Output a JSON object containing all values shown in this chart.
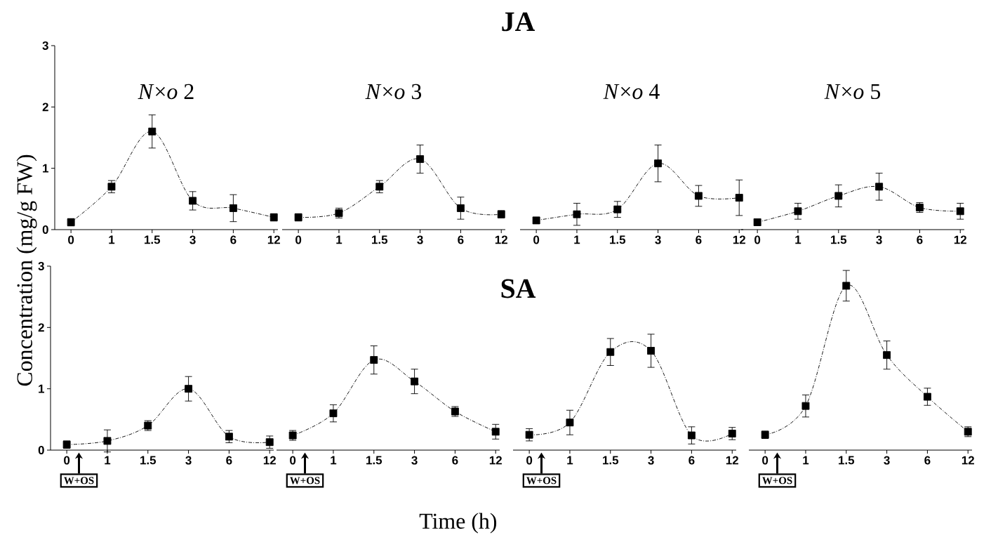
{
  "chart_data": [
    {
      "type": "line",
      "title": "*N*×*o* 2",
      "ylabel": "Concentration (mg/g FW)",
      "annotations": [
        "JA"
      ],
      "categories": [
        "0",
        "1",
        "1.5",
        "3",
        "6",
        "12"
      ],
      "values": [
        0.12,
        0.7,
        1.6,
        0.47,
        0.35,
        0.2
      ],
      "errors": [
        0.06,
        0.1,
        0.27,
        0.15,
        0.22,
        0.06
      ],
      "color": "#000000",
      "marker": "square",
      "line_style": "dashed",
      "ylim": [
        0,
        3
      ],
      "yticks": [
        0,
        1,
        2,
        3
      ]
    },
    {
      "type": "line",
      "title": "*N*×*o* 3",
      "categories": [
        "0",
        "1",
        "1.5",
        "3",
        "6",
        "12"
      ],
      "values": [
        0.2,
        0.27,
        0.7,
        1.15,
        0.35,
        0.25
      ],
      "errors": [
        0.06,
        0.08,
        0.1,
        0.23,
        0.18,
        0.06
      ],
      "color": "#000000",
      "marker": "square",
      "line_style": "dashed",
      "ylim": [
        0,
        3
      ],
      "tick_labels": "x"
    },
    {
      "type": "line",
      "title": "*N*×*o* 4",
      "categories": [
        "0",
        "1",
        "1.5",
        "3",
        "6",
        "12"
      ],
      "values": [
        0.15,
        0.25,
        0.33,
        1.08,
        0.55,
        0.52
      ],
      "errors": [
        0.05,
        0.18,
        0.13,
        0.3,
        0.17,
        0.29
      ],
      "color": "#000000",
      "marker": "square",
      "line_style": "dashed",
      "ylim": [
        0,
        3
      ],
      "tick_labels": "x"
    },
    {
      "type": "line",
      "title": "*N*×*o* 5",
      "categories": [
        "0",
        "1",
        "1.5",
        "3",
        "6",
        "12"
      ],
      "values": [
        0.12,
        0.3,
        0.55,
        0.7,
        0.36,
        0.3
      ],
      "errors": [
        0.05,
        0.13,
        0.18,
        0.22,
        0.08,
        0.13
      ],
      "color": "#000000",
      "marker": "square",
      "line_style": "dashed",
      "ylim": [
        0,
        3
      ],
      "tick_labels": "x"
    },
    {
      "type": "line",
      "annotations": [
        "SA",
        "W+OS"
      ],
      "categories": [
        "0",
        "1",
        "1.5",
        "3",
        "6",
        "12"
      ],
      "values": [
        0.09,
        0.15,
        0.4,
        1.0,
        0.22,
        0.13
      ],
      "errors": [
        0.06,
        0.18,
        0.08,
        0.2,
        0.1,
        0.1
      ],
      "color": "#000000",
      "marker": "square",
      "line_style": "dashed",
      "ylim": [
        0,
        3
      ],
      "yticks": [
        0,
        1,
        2,
        3
      ]
    },
    {
      "type": "line",
      "xlabel": "Time (h)",
      "annotations": [
        "W+OS"
      ],
      "categories": [
        "0",
        "1",
        "1.5",
        "3",
        "6",
        "12"
      ],
      "values": [
        0.24,
        0.6,
        1.47,
        1.12,
        0.63,
        0.3
      ],
      "errors": [
        0.08,
        0.14,
        0.23,
        0.2,
        0.08,
        0.12
      ],
      "color": "#000000",
      "marker": "square",
      "line_style": "dashed",
      "ylim": [
        0,
        3
      ],
      "tick_labels": "x"
    },
    {
      "type": "line",
      "annotations": [
        "W+OS"
      ],
      "categories": [
        "0",
        "1",
        "1.5",
        "3",
        "6",
        "12"
      ],
      "values": [
        0.25,
        0.45,
        1.6,
        1.62,
        0.24,
        0.27
      ],
      "errors": [
        0.1,
        0.2,
        0.22,
        0.27,
        0.14,
        0.1
      ],
      "color": "#000000",
      "marker": "square",
      "line_style": "dashed",
      "ylim": [
        0,
        3
      ],
      "tick_labels": "x"
    },
    {
      "type": "line",
      "annotations": [
        "W+OS"
      ],
      "categories": [
        "0",
        "1",
        "1.5",
        "3",
        "6",
        "12"
      ],
      "values": [
        0.25,
        0.72,
        2.68,
        1.55,
        0.87,
        0.3
      ],
      "errors": [
        0.06,
        0.18,
        0.25,
        0.23,
        0.14,
        0.08
      ],
      "color": "#000000",
      "marker": "square",
      "line_style": "dashed",
      "ylim": [
        0,
        3
      ],
      "tick_labels": "x"
    }
  ]
}
